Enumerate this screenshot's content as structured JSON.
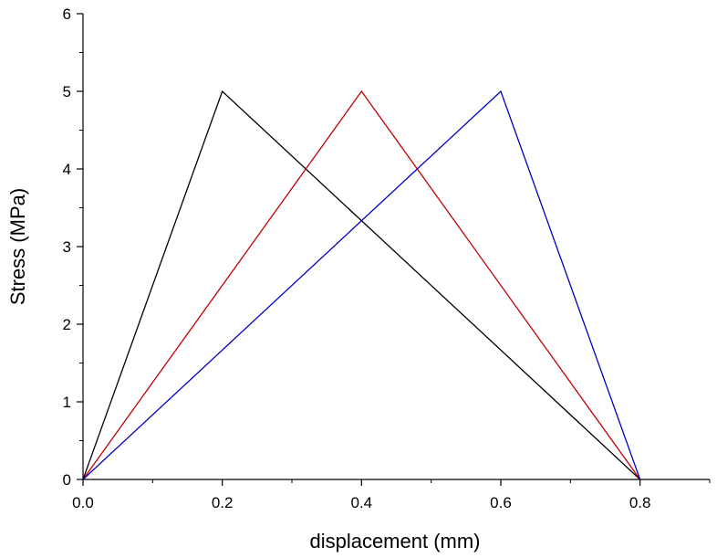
{
  "chart_data": {
    "type": "line",
    "title": "",
    "xlabel": "displacement (mm)",
    "ylabel": "Stress (MPa)",
    "xlim": [
      0.0,
      0.9
    ],
    "ylim": [
      0,
      6
    ],
    "x_ticks": [
      0.0,
      0.2,
      0.4,
      0.6,
      0.8
    ],
    "x_tick_labels": [
      "0.0",
      "0.2",
      "0.4",
      "0.6",
      "0.8"
    ],
    "y_ticks": [
      0,
      1,
      2,
      3,
      4,
      5,
      6
    ],
    "y_tick_labels": [
      "0",
      "1",
      "2",
      "3",
      "4",
      "5",
      "6"
    ],
    "grid": false,
    "legend": "none",
    "series": [
      {
        "color": "#000000",
        "x": [
          0.0,
          0.2,
          0.8
        ],
        "y": [
          0,
          5,
          0
        ]
      },
      {
        "color": "#c00000",
        "x": [
          0.0,
          0.4,
          0.8
        ],
        "y": [
          0,
          5,
          0
        ]
      },
      {
        "color": "#0000c0",
        "x": [
          0.0,
          0.6,
          0.8
        ],
        "y": [
          0,
          5,
          0
        ]
      }
    ]
  }
}
